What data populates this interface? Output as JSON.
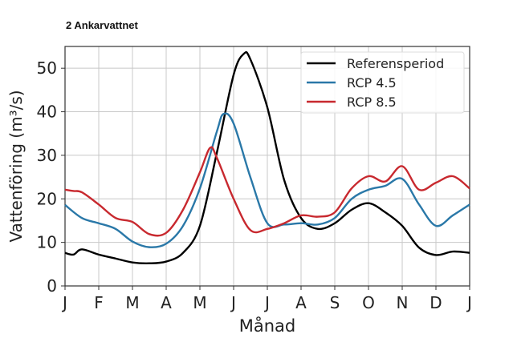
{
  "chart_data": {
    "type": "line",
    "title": "2 Ankarvattnet",
    "xlabel": "Månad",
    "ylabel": "Vattenföring (m³/s)",
    "ylim": [
      0,
      55
    ],
    "xlim": [
      0,
      12
    ],
    "yticks": [
      0,
      10,
      20,
      30,
      40,
      50
    ],
    "xtick_labels": [
      "J",
      "F",
      "M",
      "A",
      "M",
      "J",
      "J",
      "A",
      "S",
      "O",
      "N",
      "D",
      "J"
    ],
    "grid": true,
    "legend_position": "top-right",
    "series": [
      {
        "name": "Referensperiod",
        "color": "#000000",
        "x": [
          0,
          0.25,
          0.5,
          1,
          1.5,
          2,
          2.5,
          3,
          3.5,
          4,
          4.5,
          5,
          5.3,
          5.5,
          6,
          6.5,
          7,
          7.5,
          8,
          8.5,
          9,
          9.5,
          10,
          10.5,
          11,
          11.5,
          12
        ],
        "y": [
          7.6,
          7.2,
          8.4,
          7.2,
          6.3,
          5.4,
          5.2,
          5.6,
          7.6,
          13.8,
          30.5,
          48.5,
          53.3,
          52,
          41,
          24.3,
          15.6,
          13.1,
          14.4,
          17.5,
          19,
          16.9,
          13.8,
          8.8,
          7.1,
          7.9,
          7.6
        ]
      },
      {
        "name": "RCP 4.5",
        "color": "#2a78a8",
        "x": [
          0,
          0.5,
          1,
          1.5,
          2,
          2.5,
          3,
          3.5,
          4,
          4.5,
          4.7,
          5,
          5.5,
          6,
          6.5,
          7,
          7.5,
          8,
          8.5,
          9,
          9.5,
          10,
          10.5,
          11,
          11.5,
          12
        ],
        "y": [
          18.6,
          15.6,
          14.4,
          13.1,
          10.2,
          8.9,
          9.7,
          13.8,
          22.4,
          35.4,
          39.5,
          37.3,
          24.9,
          14.4,
          14.1,
          14.4,
          14.1,
          15.6,
          20,
          22.1,
          23,
          24.6,
          18.7,
          13.8,
          16.2,
          18.7
        ]
      },
      {
        "name": "RCP 8.5",
        "color": "#c8292f",
        "x": [
          0,
          0.25,
          0.5,
          1,
          1.5,
          2,
          2.5,
          3,
          3.5,
          4,
          4.3,
          4.5,
          5,
          5.5,
          6,
          6.5,
          7,
          7.5,
          8,
          8.5,
          9,
          9.5,
          10,
          10.5,
          11,
          11.5,
          12
        ],
        "y": [
          22.1,
          21.8,
          21.5,
          18.7,
          15.6,
          14.7,
          11.9,
          12.2,
          17.5,
          26.1,
          31.7,
          29.5,
          20,
          12.8,
          13.1,
          14.4,
          16.2,
          15.9,
          16.9,
          22.4,
          25.2,
          24,
          27.5,
          22.1,
          23.7,
          25.2,
          22.4
        ]
      }
    ]
  }
}
